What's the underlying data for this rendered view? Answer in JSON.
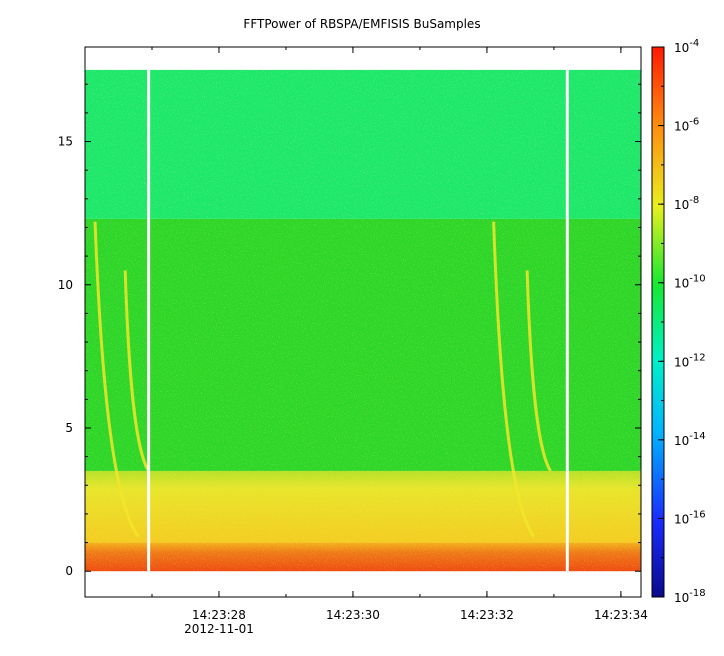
{
  "chart_data": {
    "type": "heatmap",
    "title": "FFTPower of RBSPA/EMFISIS  BuSamples",
    "xlabel": "",
    "ylabel": "",
    "x_date": "2012-11-01",
    "x_ticks": [
      "14:23:28",
      "14:23:30",
      "14:23:32",
      "14:23:34"
    ],
    "x_range": [
      "14:23:26.0",
      "14:23:34.3"
    ],
    "y_ticks": [
      0,
      5,
      10,
      15
    ],
    "y_range": [
      -0.9,
      18.3
    ],
    "data_y_range": [
      0,
      17.5
    ],
    "colorbar": {
      "scale": "log",
      "range": [
        1e-18,
        0.0001
      ],
      "tick_base": "10",
      "tick_exponents": [
        "-4",
        "-6",
        "-8",
        "-10",
        "-12",
        "-14",
        "-16",
        "-18"
      ]
    },
    "gaps_x": [
      "14:23:26.95",
      "14:23:33.2"
    ],
    "bands": [
      {
        "y": [
          12.3,
          17.5
        ],
        "power": "~1e-12"
      },
      {
        "y": [
          3.5,
          12.3
        ],
        "power": "~1e-10"
      },
      {
        "y": [
          1.0,
          3.5
        ],
        "power": "~1e-9 to 1e-8"
      },
      {
        "y": [
          0,
          1.0
        ],
        "power": "~1e-6"
      }
    ],
    "chorus_elements": [
      {
        "start_time": "14:23:26.15",
        "start_y": 12.2,
        "end_time": "14:23:26.8",
        "end_y": 1.2
      },
      {
        "start_time": "14:23:26.6",
        "start_y": 10.5,
        "end_time": "14:23:26.95",
        "end_y": 3.5
      },
      {
        "start_time": "14:23:32.1",
        "start_y": 12.2,
        "end_time": "14:23:32.7",
        "end_y": 1.2
      },
      {
        "start_time": "14:23:32.6",
        "start_y": 10.5,
        "end_time": "14:23:32.95",
        "end_y": 3.5
      }
    ],
    "grid": false,
    "colors": {
      "band_top": "#1ee86c",
      "band_mid": "#2fd62a",
      "band_low": "#f0e22a",
      "band_floor": "#ef5a14",
      "gap": "#ffffff",
      "chorus": "#f3e52a"
    }
  }
}
